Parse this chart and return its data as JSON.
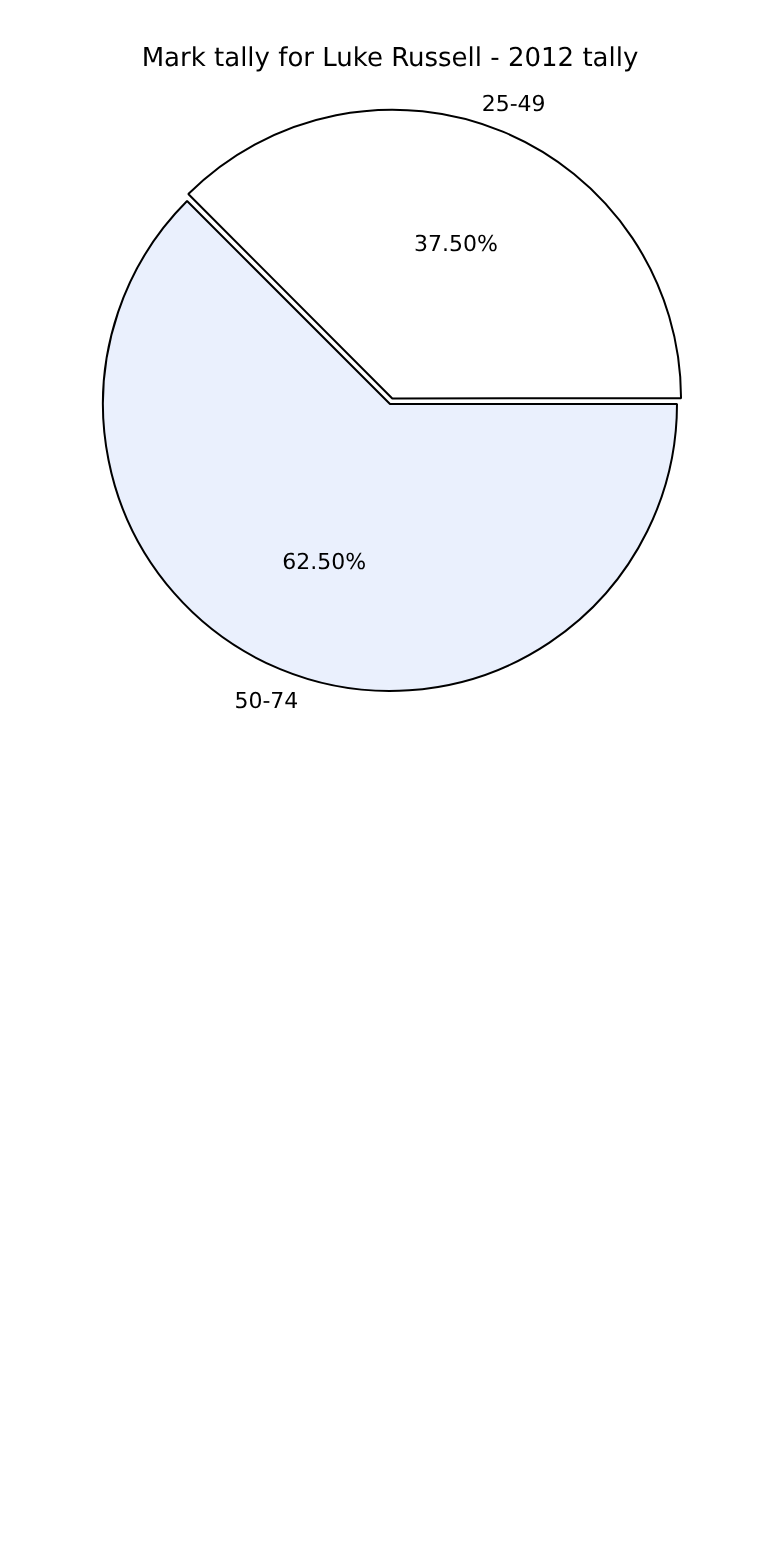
{
  "chart_data": {
    "type": "pie",
    "title": "Mark tally for Luke Russell - 2012 tally",
    "categories": [
      "25-49",
      "50-74"
    ],
    "values": [
      37.5,
      62.5
    ],
    "value_labels": [
      "37.50%",
      "62.50%"
    ],
    "colors": [
      "#ffffff",
      "#eaf0fd"
    ],
    "legend": false
  }
}
